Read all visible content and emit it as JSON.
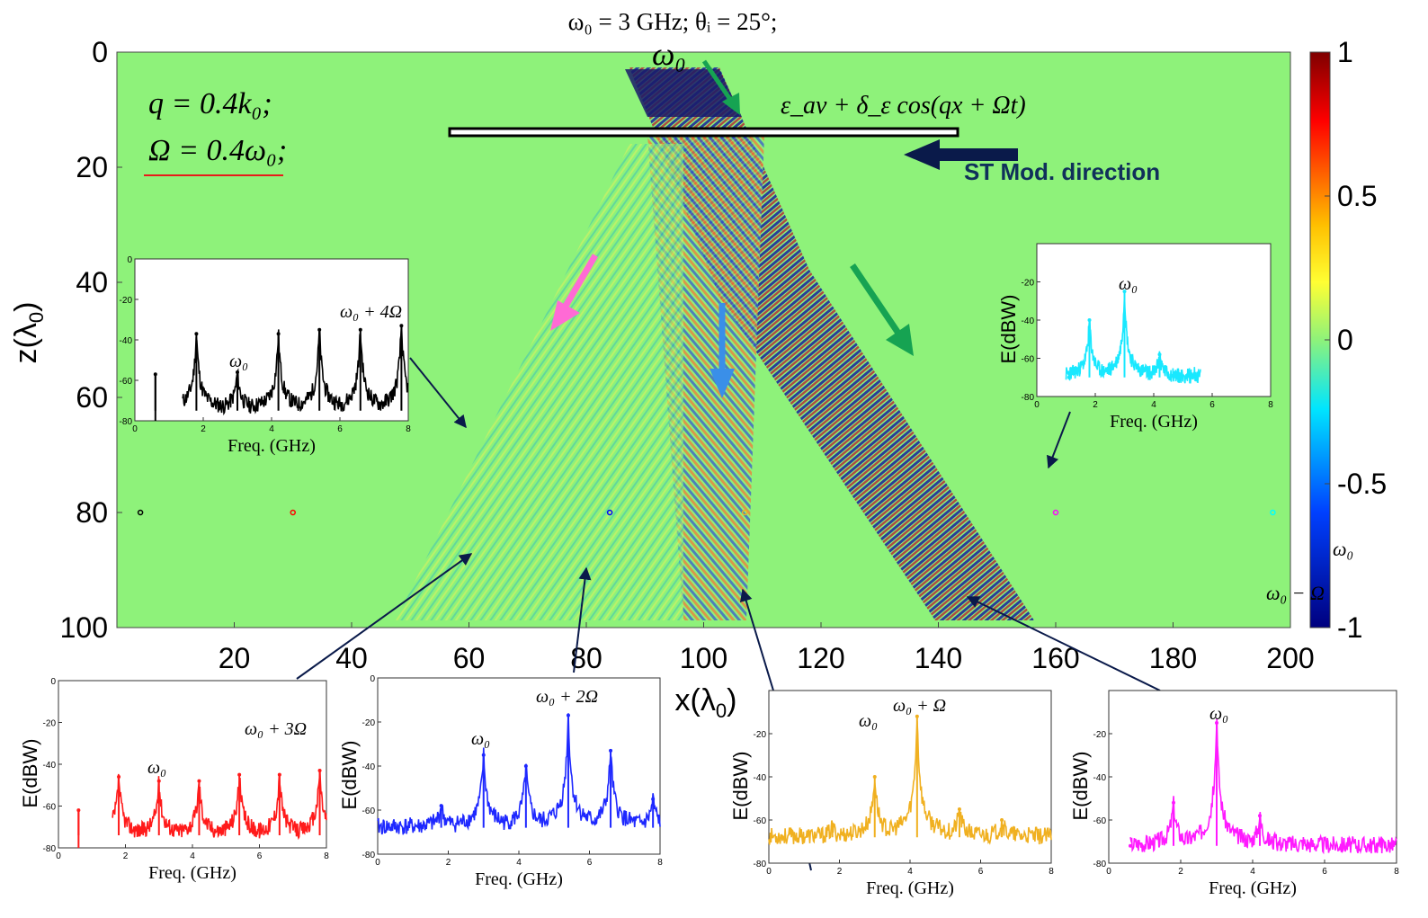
{
  "header": {
    "title": "ω₀ = 3 GHz;   θᵢ = 25°;",
    "omega0_label": "ω₀",
    "modulation_formula": "ε_av + δ_ε cos(qx + Ωt)",
    "direction_label": "ST Mod. direction",
    "q_label": "q = 0.4k₀;",
    "Omega_label": "Ω = 0.4ω₀;"
  },
  "colors": {
    "background_field": "#8ef27a",
    "accent_red": "#ff1a1a",
    "accent_blue": "#1e28ff",
    "accent_orange": "#f0b020",
    "accent_magenta": "#ff1aff",
    "accent_cyan": "#19e8ff",
    "arrow_dark_blue": "#0a1a4a",
    "arrow_green": "#16a352",
    "arrow_pink": "#ff6ad5",
    "arrow_blue": "#3a8fe8"
  },
  "chart_data": [
    {
      "type": "heatmap",
      "title": "ω₀ = 3 GHz;   θᵢ = 25°;",
      "xlabel": "x(λ0)",
      "ylabel": "z(λ0)",
      "xlim": [
        0,
        200
      ],
      "ylim": [
        0,
        100
      ],
      "x_ticks": [
        "20",
        "40",
        "60",
        "80",
        "100",
        "120",
        "140",
        "160",
        "180",
        "200"
      ],
      "y_ticks": [
        "0",
        "20",
        "40",
        "60",
        "80",
        "100"
      ],
      "colorbar": {
        "range": [
          -1,
          1
        ],
        "ticks": [
          "1",
          "0.5",
          "0",
          "-0.5",
          "-1"
        ],
        "annotations": [
          "ω₀",
          "ω₀ − Ω"
        ]
      },
      "modulated_slab": {
        "x_range": [
          57,
          143
        ],
        "z": 13.5
      },
      "probe_points": [
        {
          "x": 4,
          "z": 80,
          "color": "#000000"
        },
        {
          "x": 30,
          "z": 80,
          "color": "#ff0000"
        },
        {
          "x": 84,
          "z": 80,
          "color": "#0000ff"
        },
        {
          "x": 107,
          "z": 80,
          "color": "#f0b020"
        },
        {
          "x": 160,
          "z": 80,
          "color": "#ff00ff"
        },
        {
          "x": 197,
          "z": 80,
          "color": "#00ffff"
        }
      ]
    },
    {
      "type": "line",
      "name": "black-spectrum",
      "xlabel": "Freq. (GHz)",
      "ylabel": "",
      "xlim": [
        0,
        8
      ],
      "ylim": [
        -80,
        0
      ],
      "x_ticks": [
        "0",
        "2",
        "4",
        "6",
        "8"
      ],
      "y_ticks": [
        "0",
        "-20",
        "-40",
        "-60",
        "-80"
      ],
      "peak_labels": [
        "ω₀",
        "ω₀ + 4Ω"
      ],
      "peaks": [
        [
          0.6,
          -57
        ],
        [
          1.8,
          -37
        ],
        [
          3.0,
          -56
        ],
        [
          4.2,
          -37
        ],
        [
          5.4,
          -35
        ],
        [
          6.6,
          -35
        ],
        [
          7.8,
          -33
        ]
      ],
      "baseline": -75,
      "start": 1.4
    },
    {
      "type": "line",
      "name": "cyan-spectrum",
      "xlabel": "Freq. (GHz)",
      "ylabel": "E(dBW)",
      "xlim": [
        0,
        8
      ],
      "ylim": [
        -80,
        0
      ],
      "x_ticks": [
        "0",
        "2",
        "4",
        "6",
        "8"
      ],
      "y_ticks": [
        "-20",
        "-40",
        "-60",
        "-80"
      ],
      "peak_labels": [
        "ω₀"
      ],
      "peaks": [
        [
          1.1,
          -70
        ],
        [
          1.8,
          -40
        ],
        [
          3.0,
          -25
        ],
        [
          4.2,
          -58
        ],
        [
          5.4,
          -68
        ]
      ],
      "baseline": -70,
      "start": 1.0,
      "end": 5.6
    },
    {
      "type": "line",
      "name": "red-spectrum",
      "xlabel": "Freq. (GHz)",
      "ylabel": "E(dBW)",
      "xlim": [
        0,
        8
      ],
      "ylim": [
        -80,
        0
      ],
      "x_ticks": [
        "0",
        "2",
        "4",
        "6",
        "8"
      ],
      "y_ticks": [
        "0",
        "-20",
        "-40",
        "-60",
        "-80"
      ],
      "peak_labels": [
        "ω₀",
        "ω₀ + 3Ω"
      ],
      "peaks": [
        [
          0.6,
          -62
        ],
        [
          1.8,
          -46
        ],
        [
          3.0,
          -48
        ],
        [
          4.2,
          -48
        ],
        [
          5.4,
          -45
        ],
        [
          6.6,
          -45
        ],
        [
          7.8,
          -43
        ]
      ],
      "baseline": -74,
      "start": 1.6
    },
    {
      "type": "line",
      "name": "blue-spectrum",
      "xlabel": "Freq. (GHz)",
      "ylabel": "E(dBW)",
      "xlim": [
        0,
        8
      ],
      "ylim": [
        -80,
        0
      ],
      "x_ticks": [
        "0",
        "2",
        "4",
        "6",
        "8"
      ],
      "y_ticks": [
        "0",
        "-20",
        "-40",
        "-60",
        "-80"
      ],
      "peak_labels": [
        "ω₀",
        "ω₀ + 2Ω"
      ],
      "peaks": [
        [
          1.8,
          -58
        ],
        [
          3.0,
          -35
        ],
        [
          4.2,
          -40
        ],
        [
          5.4,
          -17
        ],
        [
          6.6,
          -33
        ],
        [
          7.8,
          -55
        ]
      ],
      "baseline": -68,
      "start": 0
    },
    {
      "type": "line",
      "name": "orange-spectrum",
      "xlabel": "Freq. (GHz)",
      "ylabel": "E(dBW)",
      "xlim": [
        0,
        8
      ],
      "ylim": [
        -80,
        0
      ],
      "x_ticks": [
        "0",
        "2",
        "4",
        "6",
        "8"
      ],
      "y_ticks": [
        "-20",
        "-40",
        "-60",
        "-80"
      ],
      "peak_labels": [
        "ω₀",
        "ω₀ + Ω"
      ],
      "peaks": [
        [
          1.8,
          -63
        ],
        [
          3.0,
          -40
        ],
        [
          4.2,
          -12
        ],
        [
          5.4,
          -55
        ],
        [
          6.6,
          -60
        ]
      ],
      "baseline": -68,
      "start": 0
    },
    {
      "type": "line",
      "name": "magenta-spectrum",
      "xlabel": "Freq. (GHz)",
      "ylabel": "E(dBW)",
      "xlim": [
        0,
        8
      ],
      "ylim": [
        -80,
        0
      ],
      "x_ticks": [
        "0",
        "2",
        "4",
        "6",
        "8"
      ],
      "y_ticks": [
        "-20",
        "-40",
        "-60",
        "-80"
      ],
      "peak_labels": [
        "ω₀"
      ],
      "peaks": [
        [
          0.6,
          -72
        ],
        [
          1.8,
          -52
        ],
        [
          3.0,
          -15
        ],
        [
          4.2,
          -58
        ],
        [
          5.4,
          -70
        ]
      ],
      "baseline": -72,
      "start": 0.6
    }
  ]
}
